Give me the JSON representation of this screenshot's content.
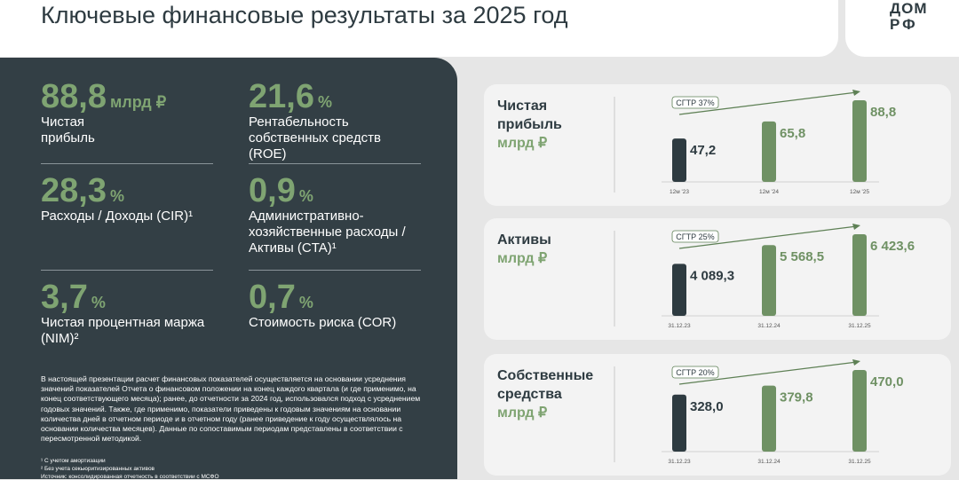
{
  "header": {
    "title": "Ключевые финансовые результаты за 2025 год",
    "logo": [
      "ДОМ",
      "РФ"
    ]
  },
  "kpis": [
    {
      "value": "88,8",
      "unit": "млрд ₽",
      "label": "Чистая прибыль"
    },
    {
      "value": "21,6",
      "unit": "%",
      "label": "Рентабельность собственных средств (ROE)"
    },
    {
      "value": "28,3",
      "unit": "%",
      "label": "Расходы / Доходы (CIR)¹"
    },
    {
      "value": "0,9",
      "unit": "%",
      "label": "Административно-хозяйственные расходы / Активы (CTA)¹"
    },
    {
      "value": "3,7",
      "unit": "%",
      "label": "Чистая процентная маржа (NIM)²"
    },
    {
      "value": "0,7",
      "unit": "%",
      "label": "Стоимость риска (COR)"
    }
  ],
  "notes": "В настоящей презентации расчет финансовых показателей осуществляется на основании усреднения значений показателей Отчета о финансовом положении на конец каждого квартала (и где применимо, на конец соответствующего месяца); ранее, до отчетности за 2024 год, использовался подход с усреднением годовых значений. Также, где применимо, показатели приведены к годовым значениям на основании количества дней в отчетном периоде и в отчетном году (ранее приведение к году осуществлялось на основании количества месяцев). Данные по сопоставимым периодам представлены в соответствии с пересмотренной методикой.",
  "footnotes": [
    "¹ С учетом амортизации",
    "² Без учета секьюритизированных активов",
    "Источник: консолидированная отчетность в соответствии с МСФО"
  ],
  "chart_data": [
    {
      "type": "bar",
      "title": "Чистая прибыль",
      "subtitle": "млрд ₽",
      "annotation": "СГТР 37%",
      "categories": [
        "12м '23",
        "12м '24",
        "12м '25"
      ],
      "values": [
        47.2,
        65.8,
        88.8
      ],
      "value_labels": [
        "47,2",
        "65,8",
        "88,8"
      ],
      "colors": [
        "#2e3b41",
        "#6f9164",
        "#6f9164"
      ]
    },
    {
      "type": "bar",
      "title": "Активы",
      "subtitle": "млрд ₽",
      "annotation": "СГТР 25%",
      "categories": [
        "31.12.23",
        "31.12.24",
        "31.12.25"
      ],
      "values": [
        4089.3,
        5568.5,
        6423.6
      ],
      "value_labels": [
        "4 089,3",
        "5 568,5",
        "6 423,6"
      ],
      "colors": [
        "#2e3b41",
        "#6f9164",
        "#6f9164"
      ]
    },
    {
      "type": "bar",
      "title": "Собственные средства",
      "subtitle": "млрд ₽",
      "annotation": "СГТР 20%",
      "categories": [
        "31.12.23",
        "31.12.24",
        "31.12.25"
      ],
      "values": [
        328.0,
        379.8,
        470.0
      ],
      "value_labels": [
        "328,0",
        "379,8",
        "470,0"
      ],
      "colors": [
        "#2e3b41",
        "#6f9164",
        "#6f9164"
      ]
    }
  ]
}
